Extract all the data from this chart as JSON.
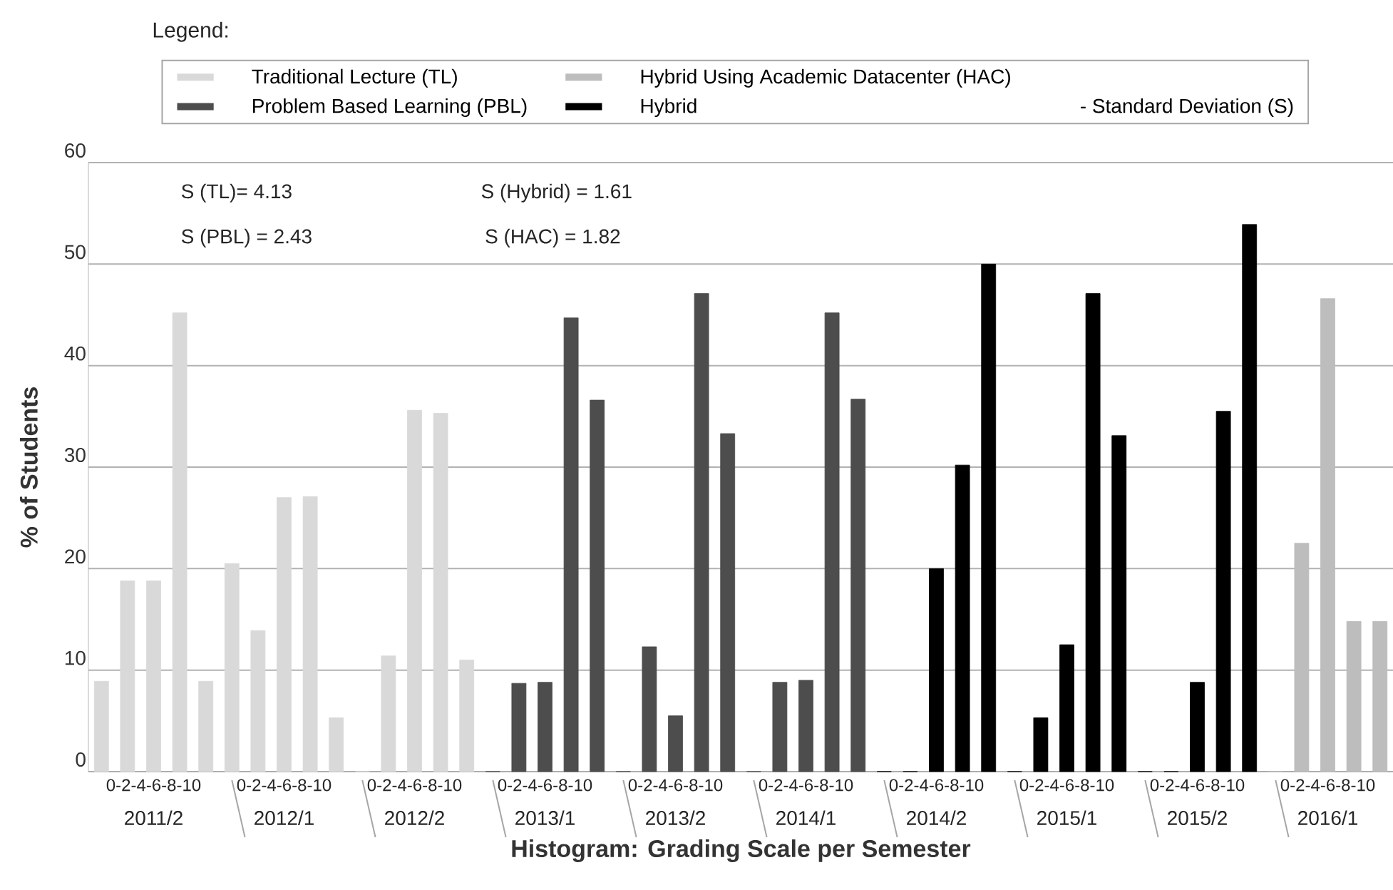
{
  "chart_data": {
    "type": "bar",
    "xlabel": "Histogram: Grading Scale per Semester",
    "ylabel": "% of Students",
    "legend_title": "Legend:",
    "legend": "top",
    "grid": "y",
    "categories": [
      null,
      null,
      null,
      null,
      null,
      null,
      null,
      null,
      null,
      null,
      null,
      null,
      null,
      null,
      null,
      null,
      null,
      null,
      null,
      null,
      null,
      null,
      null,
      null,
      null,
      null,
      null,
      null,
      null,
      null,
      null,
      null,
      null,
      null,
      null,
      null,
      null,
      null,
      null,
      null,
      null,
      null,
      null,
      null,
      null,
      null,
      null,
      null,
      null,
      null
    ],
    "ylim": [
      0,
      60
    ],
    "yticks": [
      0,
      10,
      20,
      30,
      40,
      50,
      60
    ],
    "series": [
      {
        "name": "Traditional Lecture (TL)",
        "color": "#d9d9d9",
        "values": [
          8.9,
          18.8,
          18.8,
          45.2,
          8.9,
          20.5,
          13.9,
          27.0,
          27.1,
          5.3,
          0,
          11.4,
          35.6,
          35.3,
          11.0,
          null,
          null,
          null,
          null,
          null,
          null,
          null,
          null,
          null,
          null,
          null,
          null,
          null,
          null,
          null,
          null,
          null,
          null,
          null,
          null,
          null,
          null,
          null,
          null,
          null,
          null,
          null,
          null,
          null,
          null,
          null,
          null,
          null,
          null,
          null
        ]
      },
      {
        "name": "Problem Based Learning (PBL)",
        "color": "#4d4d4d",
        "values": [
          null,
          null,
          null,
          null,
          null,
          null,
          null,
          null,
          null,
          null,
          null,
          null,
          null,
          null,
          null,
          0,
          8.7,
          8.8,
          44.7,
          36.6,
          0,
          12.3,
          5.5,
          47.1,
          33.3,
          0,
          8.8,
          9.0,
          45.2,
          36.7,
          null,
          null,
          null,
          null,
          null,
          null,
          null,
          null,
          null,
          null,
          null,
          null,
          null,
          null,
          null,
          null,
          null,
          null,
          null,
          null
        ]
      },
      {
        "name": "Hybrid",
        "color": "#000000",
        "values": [
          null,
          null,
          null,
          null,
          null,
          null,
          null,
          null,
          null,
          null,
          null,
          null,
          null,
          null,
          null,
          null,
          null,
          null,
          null,
          null,
          null,
          null,
          null,
          null,
          null,
          null,
          null,
          null,
          null,
          null,
          0,
          0,
          20.0,
          30.2,
          50.0,
          0,
          5.3,
          12.5,
          47.1,
          33.1,
          0,
          0,
          8.8,
          35.5,
          53.9,
          null,
          null,
          null,
          null,
          null
        ]
      },
      {
        "name": "Hybrid Using Academic Datacenter (HAC)",
        "color": "#bdbdbd",
        "values": [
          null,
          null,
          null,
          null,
          null,
          null,
          null,
          null,
          null,
          null,
          null,
          null,
          null,
          null,
          null,
          null,
          null,
          null,
          null,
          null,
          null,
          null,
          null,
          null,
          null,
          null,
          null,
          null,
          null,
          null,
          null,
          null,
          null,
          null,
          null,
          null,
          null,
          null,
          null,
          null,
          null,
          null,
          null,
          null,
          null,
          0,
          22.5,
          46.6,
          14.8,
          14.8
        ]
      }
    ],
    "annotations": [
      "- Standard Deviation (S)",
      "S (TL)= 4.13",
      "S (PBL) = 2.43",
      "S (Hybrid) = 1.61",
      "S (HAC) = 1.82",
      "0-2-4-6-8-10",
      "0-2-4-6-8-10",
      "0-2-4-6-8-10",
      "0-2-4-6-8-10",
      "0-2-4-6-8-10",
      "0-2-4-6-8-10",
      "0-2-4-6-8-10",
      "0-2-4-6-8-10",
      "0-2-4-6-8-10",
      "0-2-4-6-8-10",
      "2011/2",
      "2012/1",
      "2012/2",
      "2013/1",
      "2013/2",
      "2014/1",
      "2014/2",
      "2015/1",
      "2015/2",
      "2016/1"
    ]
  }
}
